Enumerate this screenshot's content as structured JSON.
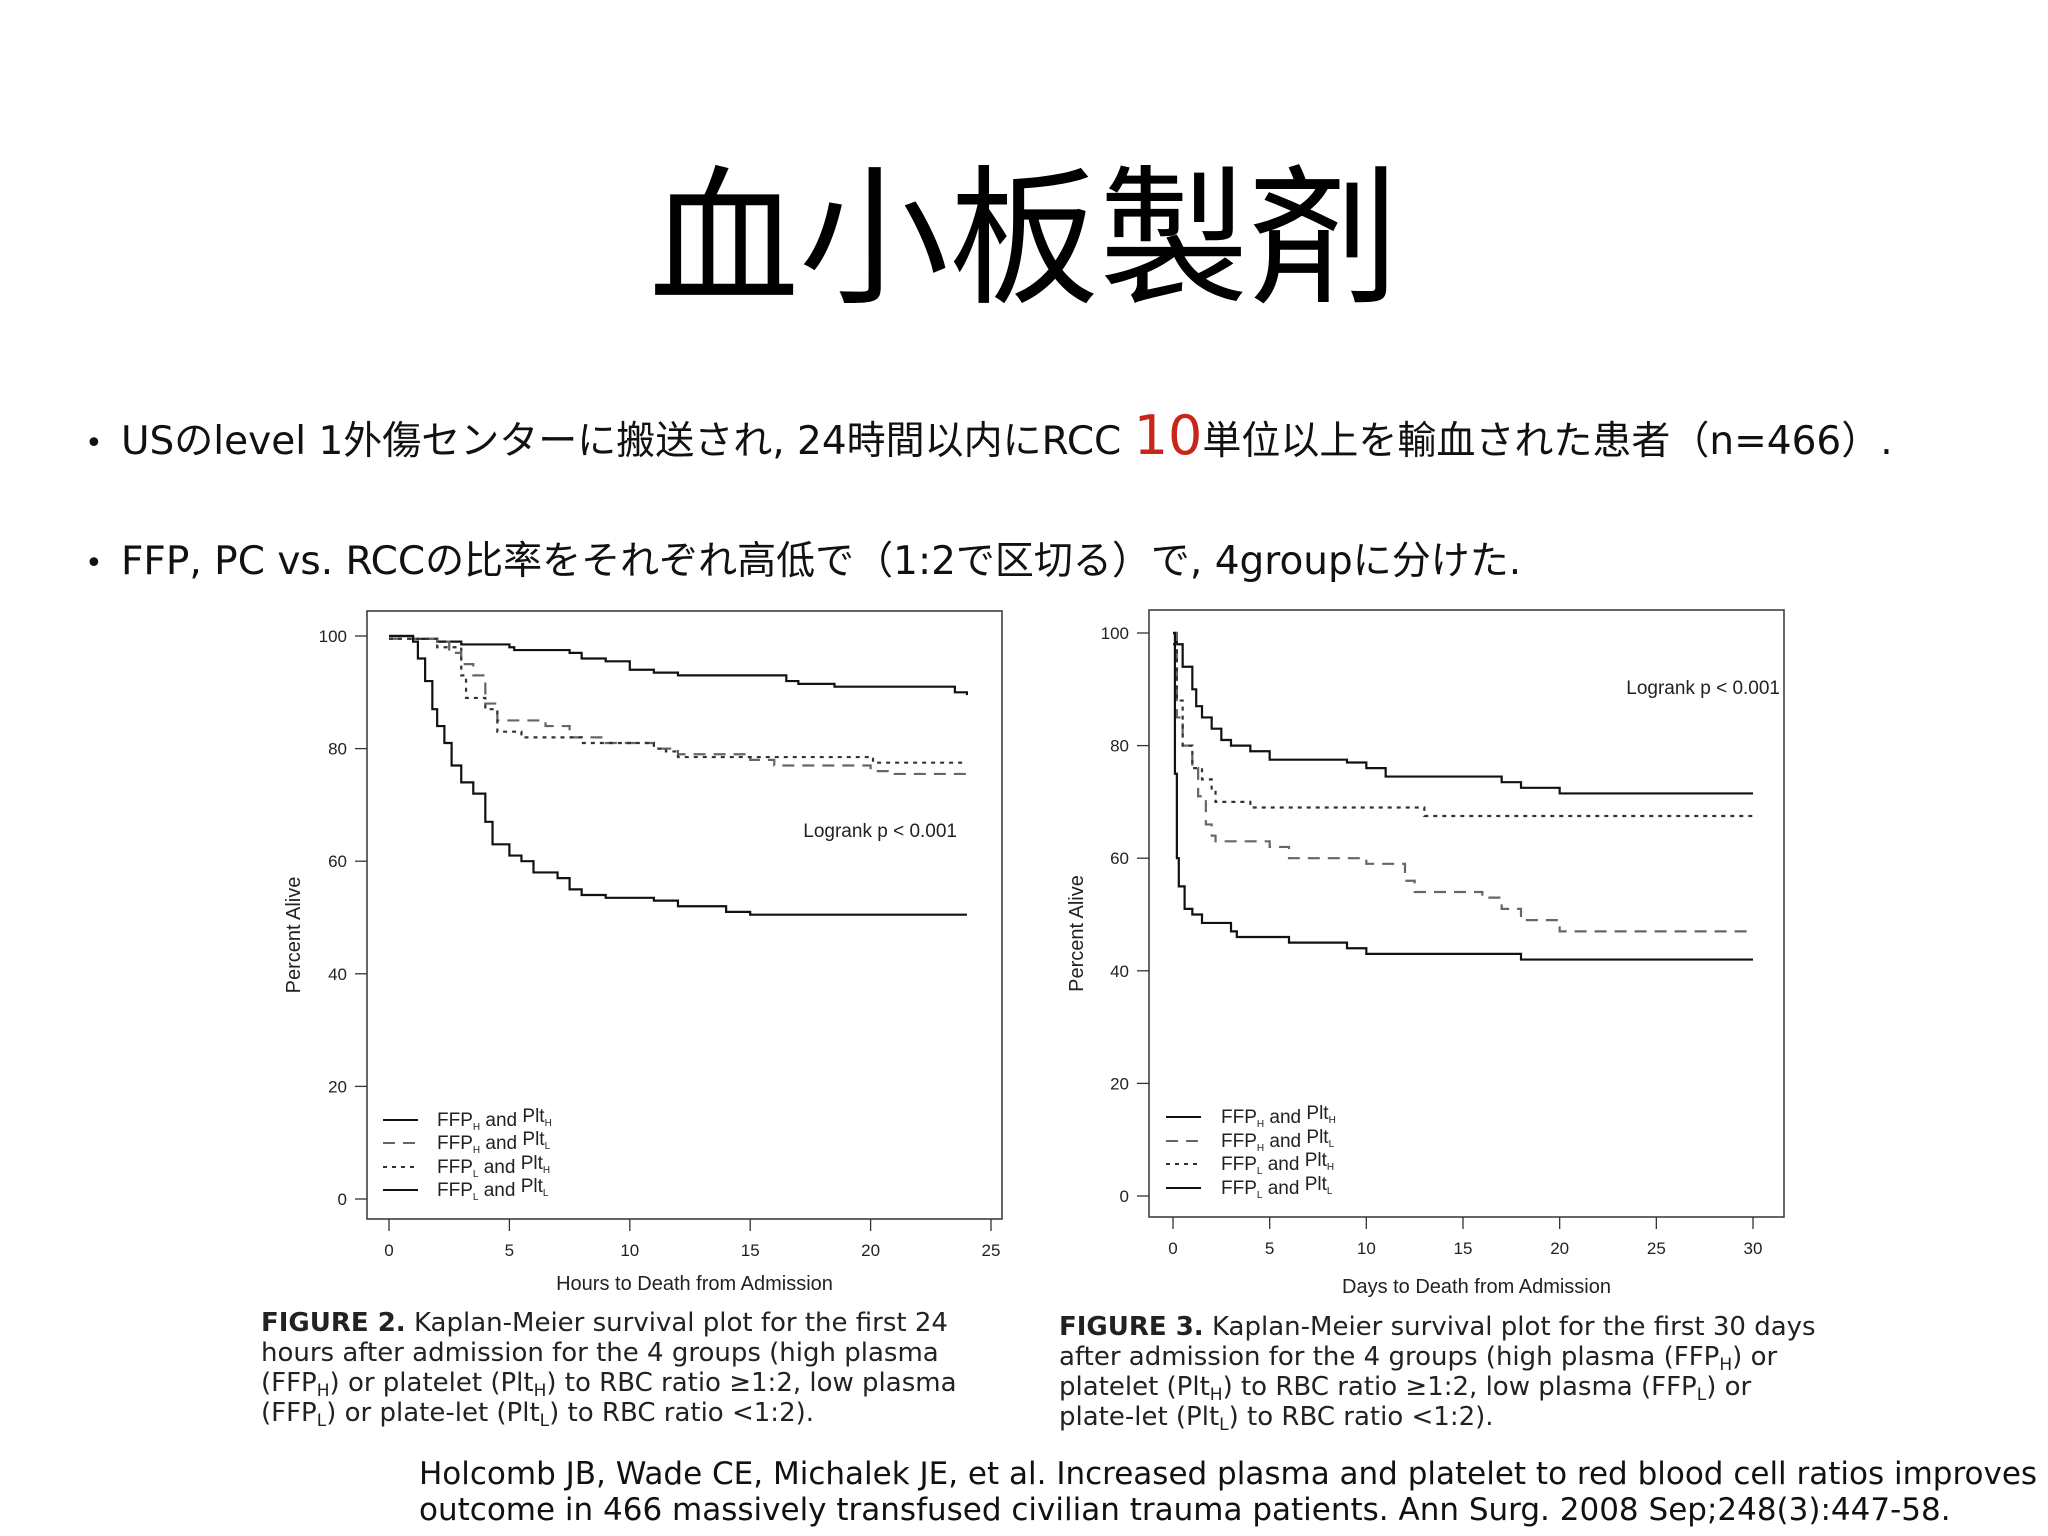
{
  "slide": {
    "title": "血小板製剤",
    "bullets": [
      {
        "before": "USのlevel 1外傷センターに搬送され, 24時間以内にRCC ",
        "highlight": "10",
        "after": "単位以上を輸血された患者（n=466）."
      },
      {
        "text": "FFP, PC vs. RCCの比率をそれぞれ高低で（1:2で区切る）で, 4groupに分けた."
      }
    ],
    "accent_color": "#c8261b",
    "citation": [
      "Holcomb JB, Wade CE, Michalek JE, et al. Increased plasma and platelet to red blood cell ratios improves",
      "outcome in 466 massively transfused civilian trauma patients. Ann Surg. 2008 Sep;248(3):447-58."
    ]
  },
  "captions": [
    {
      "label": "FIGURE 2.",
      "segments": [
        {
          "t": " Kaplan-Meier survival plot for the first 24 hours after admission for the 4 groups (high plasma (FFP"
        },
        {
          "sub": "H"
        },
        {
          "t": ") or platelet (Plt"
        },
        {
          "sub": "H"
        },
        {
          "t": ") to RBC ratio ≥1:2, low plasma (FFP"
        },
        {
          "sub": "L"
        },
        {
          "t": ") or plate-let (Plt"
        },
        {
          "sub": "L"
        },
        {
          "t": ") to RBC ratio <1:2)."
        }
      ]
    },
    {
      "label": "FIGURE 3.",
      "segments": [
        {
          "t": " Kaplan-Meier survival plot for the first 30 days after admission for the 4 groups (high plasma (FFP"
        },
        {
          "sub": "H"
        },
        {
          "t": ") or platelet (Plt"
        },
        {
          "sub": "H"
        },
        {
          "t": ") to RBC ratio ≥1:2, low plasma (FFP"
        },
        {
          "sub": "L"
        },
        {
          "t": ") or plate-let (Plt"
        },
        {
          "sub": "L"
        },
        {
          "t": ") to RBC ratio <1:2)."
        }
      ]
    }
  ],
  "chart_data": [
    {
      "type": "line",
      "step": true,
      "xlabel": "Hours to Death from Admission",
      "ylabel": "Percent Alive",
      "xlim": [
        0,
        25
      ],
      "ylim": [
        0,
        100
      ],
      "xticks": [
        0,
        5,
        10,
        15,
        20,
        25
      ],
      "yticks": [
        0,
        20,
        40,
        60,
        80,
        100
      ],
      "grid": false,
      "legend": "bottom-left",
      "annotation": "Logrank p < 0.001",
      "series": [
        {
          "name": [
            "FFP",
            "H",
            " and ",
            "Plt",
            "H"
          ],
          "style": "solid",
          "color": "#111111",
          "points": [
            [
              0,
              100
            ],
            [
              1,
              99.5
            ],
            [
              2,
              99
            ],
            [
              3,
              98.5
            ],
            [
              5,
              98
            ],
            [
              5.2,
              97.5
            ],
            [
              7.5,
              97
            ],
            [
              8,
              96
            ],
            [
              9,
              95.5
            ],
            [
              10,
              94
            ],
            [
              11,
              93.5
            ],
            [
              12,
              93
            ],
            [
              16.5,
              92
            ],
            [
              17,
              91.5
            ],
            [
              18.5,
              91
            ],
            [
              23.5,
              90
            ],
            [
              24,
              89.5
            ]
          ]
        },
        {
          "name": [
            "FFP",
            "H",
            " and  ",
            "Plt",
            "L"
          ],
          "style": "dashed",
          "color": "#666666",
          "points": [
            [
              0,
              99.5
            ],
            [
              2,
              99
            ],
            [
              2.5,
              97
            ],
            [
              3,
              95
            ],
            [
              3.5,
              93
            ],
            [
              4,
              88
            ],
            [
              4.5,
              85
            ],
            [
              6,
              85
            ],
            [
              6.5,
              84
            ],
            [
              7.5,
              82
            ],
            [
              9,
              81
            ],
            [
              10,
              81
            ],
            [
              11,
              80
            ],
            [
              12,
              79
            ],
            [
              15,
              78
            ],
            [
              16,
              77
            ],
            [
              20,
              76
            ],
            [
              21,
              75.5
            ],
            [
              24,
              75.5
            ]
          ]
        },
        {
          "name": [
            "FFP",
            "L",
            " and  ",
            "Plt",
            "H"
          ],
          "style": "dotted",
          "color": "#333333",
          "points": [
            [
              0,
              99.5
            ],
            [
              2,
              98
            ],
            [
              3,
              93
            ],
            [
              3.2,
              89
            ],
            [
              4,
              87
            ],
            [
              4.5,
              83
            ],
            [
              5.5,
              82
            ],
            [
              7.5,
              82
            ],
            [
              8,
              81
            ],
            [
              11,
              80
            ],
            [
              11.5,
              79.5
            ],
            [
              12,
              78.5
            ],
            [
              20,
              78.5
            ],
            [
              20.1,
              77.5
            ],
            [
              24,
              77.5
            ]
          ]
        },
        {
          "name": [
            "FFP",
            "L",
            " and  ",
            "Plt",
            "L"
          ],
          "style": "solid",
          "color": "#111111",
          "points": [
            [
              0,
              100
            ],
            [
              1,
              99
            ],
            [
              1.2,
              96
            ],
            [
              1.5,
              92
            ],
            [
              1.8,
              87
            ],
            [
              2,
              84
            ],
            [
              2.3,
              81
            ],
            [
              2.6,
              77
            ],
            [
              3,
              74
            ],
            [
              3.5,
              72
            ],
            [
              4,
              67
            ],
            [
              4.3,
              63
            ],
            [
              5,
              61
            ],
            [
              5.5,
              60
            ],
            [
              6,
              58
            ],
            [
              7,
              57
            ],
            [
              7.5,
              55
            ],
            [
              8,
              54
            ],
            [
              9,
              53.5
            ],
            [
              11,
              53
            ],
            [
              12,
              52
            ],
            [
              14,
              51
            ],
            [
              15,
              50.5
            ],
            [
              24,
              50.5
            ]
          ]
        }
      ]
    },
    {
      "type": "line",
      "step": true,
      "xlabel": "Days to Death from Admission",
      "ylabel": "Percent Alive",
      "xlim": [
        0,
        30
      ],
      "ylim": [
        0,
        100
      ],
      "xticks": [
        0,
        5,
        10,
        15,
        20,
        25,
        30
      ],
      "yticks": [
        0,
        20,
        40,
        60,
        80,
        100
      ],
      "grid": false,
      "legend": "bottom-left",
      "annotation": "Logrank p < 0.001",
      "series": [
        {
          "name": [
            "FFP",
            "H",
            " and ",
            "Plt",
            "H"
          ],
          "style": "solid",
          "color": "#111111",
          "points": [
            [
              0,
              100
            ],
            [
              0.2,
              98
            ],
            [
              0.5,
              94
            ],
            [
              1,
              90
            ],
            [
              1.2,
              87
            ],
            [
              1.5,
              85
            ],
            [
              2,
              83
            ],
            [
              2.5,
              81
            ],
            [
              3,
              80
            ],
            [
              4,
              79
            ],
            [
              5,
              77.5
            ],
            [
              9,
              77
            ],
            [
              10,
              76
            ],
            [
              11,
              74.5
            ],
            [
              17,
              73.5
            ],
            [
              18,
              72.5
            ],
            [
              20,
              71.5
            ],
            [
              30,
              71.5
            ]
          ]
        },
        {
          "name": [
            "FFP",
            "H",
            " and  ",
            "Plt",
            "L"
          ],
          "style": "dashed",
          "color": "#666666",
          "points": [
            [
              0,
              100
            ],
            [
              0.2,
              85
            ],
            [
              0.5,
              80
            ],
            [
              1,
              76
            ],
            [
              1.3,
              71
            ],
            [
              1.7,
              66
            ],
            [
              2,
              64
            ],
            [
              2.2,
              63
            ],
            [
              5,
              62
            ],
            [
              6,
              60
            ],
            [
              10,
              59
            ],
            [
              12,
              56
            ],
            [
              12.5,
              54
            ],
            [
              16,
              53
            ],
            [
              17,
              51
            ],
            [
              18,
              49
            ],
            [
              20,
              47
            ],
            [
              30,
              47
            ]
          ]
        },
        {
          "name": [
            "FFP",
            "L",
            " and  ",
            "Plt",
            "H"
          ],
          "style": "dotted",
          "color": "#333333",
          "points": [
            [
              0,
              98
            ],
            [
              0.2,
              88
            ],
            [
              0.5,
              80
            ],
            [
              1,
              76
            ],
            [
              1.5,
              74
            ],
            [
              2,
              72
            ],
            [
              2.2,
              70
            ],
            [
              4,
              69
            ],
            [
              13,
              67.5
            ],
            [
              30,
              67.5
            ]
          ]
        },
        {
          "name": [
            "FFP",
            "L",
            " and  ",
            "Plt",
            "L"
          ],
          "style": "solid",
          "color": "#111111",
          "points": [
            [
              0,
              100
            ],
            [
              0.1,
              75
            ],
            [
              0.2,
              60
            ],
            [
              0.3,
              55
            ],
            [
              0.6,
              51
            ],
            [
              1,
              50
            ],
            [
              1.5,
              48.5
            ],
            [
              3,
              47
            ],
            [
              3.3,
              46
            ],
            [
              6,
              45
            ],
            [
              9,
              44
            ],
            [
              10,
              43
            ],
            [
              18,
              42
            ],
            [
              30,
              42
            ]
          ]
        }
      ]
    }
  ]
}
